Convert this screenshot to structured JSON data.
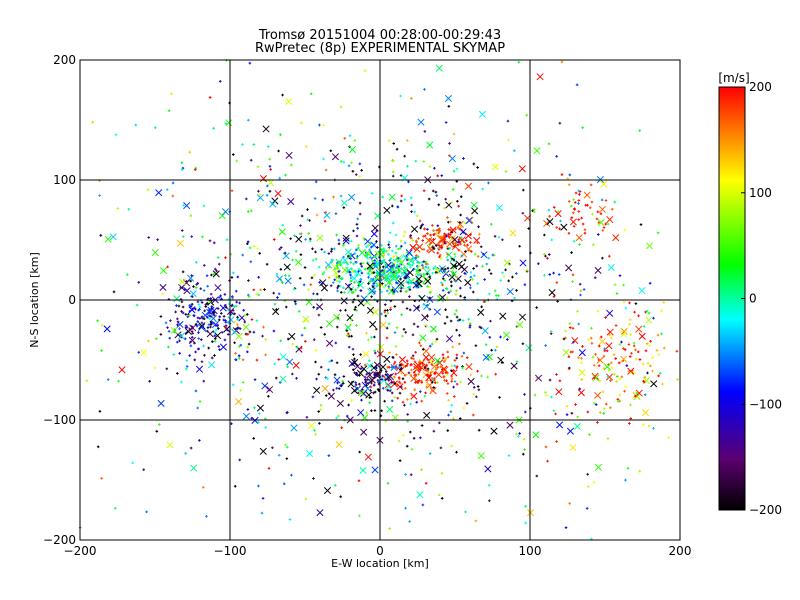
{
  "chart_data": {
    "type": "scatter",
    "title": "Tromsø 20151004 00:28:00-00:29:43",
    "subtitle": "RwPretec (8p) EXPERIMENTAL SKYMAP",
    "xlabel": "E-W location [km]",
    "ylabel": "N-S location [km]",
    "xlim": [
      -200,
      200
    ],
    "ylim": [
      -200,
      200
    ],
    "x_ticks": [
      -200,
      -100,
      0,
      100,
      200
    ],
    "y_ticks": [
      -200,
      -100,
      0,
      100,
      200
    ],
    "x_tick_labels": [
      "−200",
      "−100",
      "0",
      "100",
      "200"
    ],
    "y_tick_labels": [
      "−200",
      "−100",
      "0",
      "100",
      "200"
    ],
    "grid": true,
    "markers": [
      "+",
      "x"
    ],
    "colorbar": {
      "label": "[m/s]",
      "range": [
        -200,
        200
      ],
      "ticks": [
        200,
        100,
        0,
        -100,
        -200
      ],
      "tick_labels": [
        "200",
        "100",
        "0",
        "−100",
        "−200"
      ],
      "colormap": [
        "#000000",
        "#5a0070",
        "#0000ff",
        "#00ffff",
        "#00ff00",
        "#ffff00",
        "#ff0000"
      ]
    },
    "clusters": [
      {
        "cx": 5,
        "cy": 25,
        "sx": 22,
        "sy": 12,
        "v": 0,
        "vsd": 60,
        "n": 420
      },
      {
        "cx": 45,
        "cy": 50,
        "sx": 10,
        "sy": 6,
        "v": 185,
        "vsd": 20,
        "n": 110
      },
      {
        "cx": 30,
        "cy": -60,
        "sx": 14,
        "sy": 10,
        "v": 185,
        "vsd": 25,
        "n": 170
      },
      {
        "cx": -5,
        "cy": -65,
        "sx": 14,
        "sy": 8,
        "v": -150,
        "vsd": 50,
        "n": 90
      },
      {
        "cx": -115,
        "cy": -15,
        "sx": 14,
        "sy": 18,
        "v": -110,
        "vsd": 60,
        "n": 240
      },
      {
        "cx": 135,
        "cy": 70,
        "sx": 15,
        "sy": 12,
        "v": 190,
        "vsd": 20,
        "n": 45
      },
      {
        "cx": 160,
        "cy": -55,
        "sx": 22,
        "sy": 25,
        "v": 170,
        "vsd": 60,
        "n": 140
      },
      {
        "cx": 15,
        "cy": 0,
        "sx": 60,
        "sy": 60,
        "v": -200,
        "vsd": 30,
        "n": 320
      },
      {
        "cx": 0,
        "cy": 0,
        "sx": 110,
        "sy": 100,
        "v": 0,
        "vsd": 120,
        "n": 900
      }
    ]
  }
}
